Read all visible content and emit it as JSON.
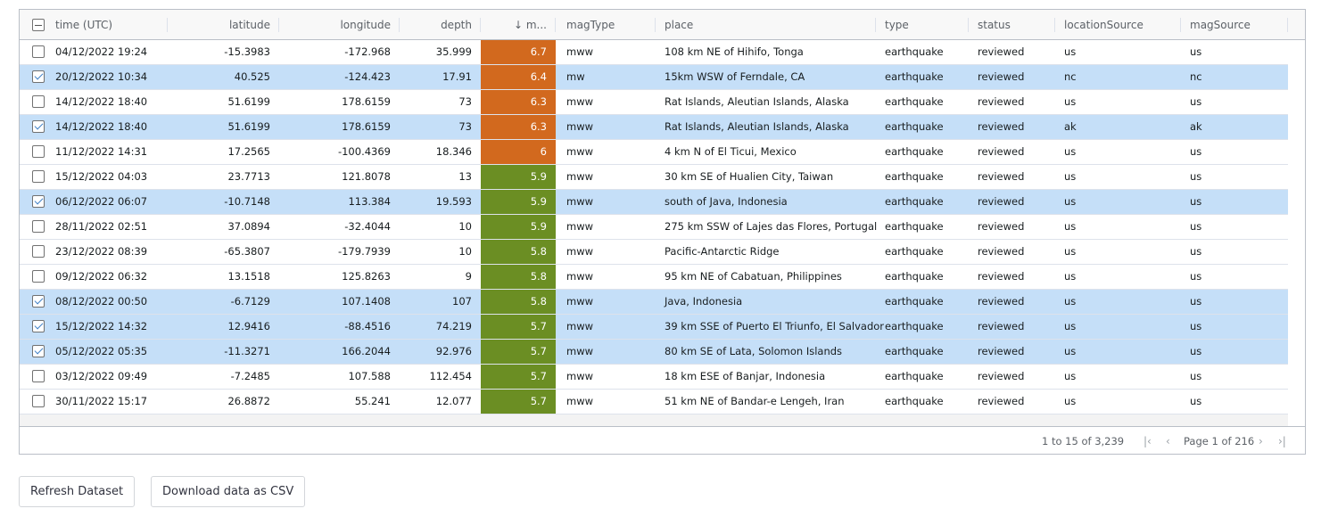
{
  "grid": {
    "columns": [
      {
        "label": "time (UTC)"
      },
      {
        "label": "latitude"
      },
      {
        "label": "longitude"
      },
      {
        "label": "depth"
      },
      {
        "label": "↓ m..."
      },
      {
        "label": "magType"
      },
      {
        "label": "place"
      },
      {
        "label": "type"
      },
      {
        "label": "status"
      },
      {
        "label": "locationSource"
      },
      {
        "label": "magSource"
      }
    ],
    "rows": [
      {
        "selected": false,
        "time": "04/12/2022 19:24",
        "latitude": "-15.3983",
        "longitude": "-172.968",
        "depth": "35.999",
        "mag": "6.7",
        "magType": "mww",
        "place": "108 km NE of Hihifo, Tonga",
        "type": "earthquake",
        "status": "reviewed",
        "locationSource": "us",
        "magSource": "us"
      },
      {
        "selected": true,
        "time": "20/12/2022 10:34",
        "latitude": "40.525",
        "longitude": "-124.423",
        "depth": "17.91",
        "mag": "6.4",
        "magType": "mw",
        "place": "15km WSW of Ferndale, CA",
        "type": "earthquake",
        "status": "reviewed",
        "locationSource": "nc",
        "magSource": "nc"
      },
      {
        "selected": false,
        "time": "14/12/2022 18:40",
        "latitude": "51.6199",
        "longitude": "178.6159",
        "depth": "73",
        "mag": "6.3",
        "magType": "mww",
        "place": "Rat Islands, Aleutian Islands, Alaska",
        "type": "earthquake",
        "status": "reviewed",
        "locationSource": "us",
        "magSource": "us"
      },
      {
        "selected": true,
        "time": "14/12/2022 18:40",
        "latitude": "51.6199",
        "longitude": "178.6159",
        "depth": "73",
        "mag": "6.3",
        "magType": "mww",
        "place": "Rat Islands, Aleutian Islands, Alaska",
        "type": "earthquake",
        "status": "reviewed",
        "locationSource": "ak",
        "magSource": "ak"
      },
      {
        "selected": false,
        "time": "11/12/2022 14:31",
        "latitude": "17.2565",
        "longitude": "-100.4369",
        "depth": "18.346",
        "mag": "6",
        "magType": "mww",
        "place": "4 km N of El Ticui, Mexico",
        "type": "earthquake",
        "status": "reviewed",
        "locationSource": "us",
        "magSource": "us"
      },
      {
        "selected": false,
        "time": "15/12/2022 04:03",
        "latitude": "23.7713",
        "longitude": "121.8078",
        "depth": "13",
        "mag": "5.9",
        "magType": "mww",
        "place": "30 km SE of Hualien City, Taiwan",
        "type": "earthquake",
        "status": "reviewed",
        "locationSource": "us",
        "magSource": "us"
      },
      {
        "selected": true,
        "time": "06/12/2022 06:07",
        "latitude": "-10.7148",
        "longitude": "113.384",
        "depth": "19.593",
        "mag": "5.9",
        "magType": "mww",
        "place": "south of Java, Indonesia",
        "type": "earthquake",
        "status": "reviewed",
        "locationSource": "us",
        "magSource": "us"
      },
      {
        "selected": false,
        "time": "28/11/2022 02:51",
        "latitude": "37.0894",
        "longitude": "-32.4044",
        "depth": "10",
        "mag": "5.9",
        "magType": "mww",
        "place": "275 km SSW of Lajes das Flores, Portugal",
        "type": "earthquake",
        "status": "reviewed",
        "locationSource": "us",
        "magSource": "us"
      },
      {
        "selected": false,
        "time": "23/12/2022 08:39",
        "latitude": "-65.3807",
        "longitude": "-179.7939",
        "depth": "10",
        "mag": "5.8",
        "magType": "mww",
        "place": "Pacific-Antarctic Ridge",
        "type": "earthquake",
        "status": "reviewed",
        "locationSource": "us",
        "magSource": "us"
      },
      {
        "selected": false,
        "time": "09/12/2022 06:32",
        "latitude": "13.1518",
        "longitude": "125.8263",
        "depth": "9",
        "mag": "5.8",
        "magType": "mww",
        "place": "95 km NE of Cabatuan, Philippines",
        "type": "earthquake",
        "status": "reviewed",
        "locationSource": "us",
        "magSource": "us"
      },
      {
        "selected": true,
        "time": "08/12/2022 00:50",
        "latitude": "-6.7129",
        "longitude": "107.1408",
        "depth": "107",
        "mag": "5.8",
        "magType": "mww",
        "place": "Java, Indonesia",
        "type": "earthquake",
        "status": "reviewed",
        "locationSource": "us",
        "magSource": "us"
      },
      {
        "selected": true,
        "time": "15/12/2022 14:32",
        "latitude": "12.9416",
        "longitude": "-88.4516",
        "depth": "74.219",
        "mag": "5.7",
        "magType": "mww",
        "place": "39 km SSE of Puerto El Triunfo, El Salvador",
        "type": "earthquake",
        "status": "reviewed",
        "locationSource": "us",
        "magSource": "us"
      },
      {
        "selected": true,
        "time": "05/12/2022 05:35",
        "latitude": "-11.3271",
        "longitude": "166.2044",
        "depth": "92.976",
        "mag": "5.7",
        "magType": "mww",
        "place": "80 km SE of Lata, Solomon Islands",
        "type": "earthquake",
        "status": "reviewed",
        "locationSource": "us",
        "magSource": "us"
      },
      {
        "selected": false,
        "time": "03/12/2022 09:49",
        "latitude": "-7.2485",
        "longitude": "107.588",
        "depth": "112.454",
        "mag": "5.7",
        "magType": "mww",
        "place": "18 km ESE of Banjar, Indonesia",
        "type": "earthquake",
        "status": "reviewed",
        "locationSource": "us",
        "magSource": "us"
      },
      {
        "selected": false,
        "time": "30/11/2022 15:17",
        "latitude": "26.8872",
        "longitude": "55.241",
        "depth": "12.077",
        "mag": "5.7",
        "magType": "mww",
        "place": "51 km NE of Bandar-e Lengeh, Iran",
        "type": "earthquake",
        "status": "reviewed",
        "locationSource": "us",
        "magSource": "us"
      }
    ]
  },
  "pagination": {
    "summary": "1 to 15 of 3,239",
    "first_icon": "first-page-icon",
    "prev_icon": "previous-page-icon",
    "page_text": "Page 1 of 216",
    "next_icon": "next-page-icon",
    "last_icon": "last-page-icon"
  },
  "buttons": {
    "refresh": "Refresh Dataset",
    "download": "Download data as CSV"
  },
  "colors": {
    "mag_high": "#d2691e",
    "mag_low": "#6b8e23",
    "selected_row": "#c5dff8"
  }
}
